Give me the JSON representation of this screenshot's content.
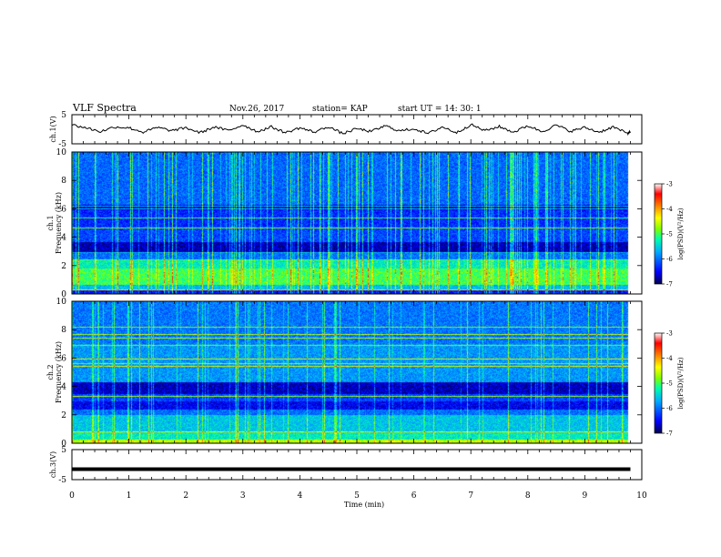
{
  "header": {
    "title": "VLF Spectra",
    "date": "Nov.26, 2017",
    "station": "station= KAP",
    "start": "start  UT =   14: 30: 1"
  },
  "colors": {
    "colormap": [
      "#00004a",
      "#0000ff",
      "#00aaff",
      "#00ffaa",
      "#80ff00",
      "#ffff00",
      "#ff8000",
      "#ff0000",
      "#ffffff"
    ],
    "trace": "#000000"
  },
  "chart_data": [
    {
      "type": "line",
      "panel": "ch1-waveform",
      "ylabel": "ch.1(V)",
      "ylim": [
        -5,
        5
      ],
      "y_ticks": [
        "5",
        "-5"
      ],
      "xlim": [
        0,
        10
      ],
      "series": [
        {
          "x": [
            0,
            0.25,
            0.5,
            0.75,
            1.0,
            1.25,
            1.5,
            1.75,
            2.0,
            2.25,
            2.5,
            2.75,
            3.0,
            3.25,
            3.5,
            3.75,
            4.0,
            4.25,
            4.5,
            4.75,
            5.0,
            5.25,
            5.5,
            5.75,
            6.0,
            6.25,
            6.5,
            6.75,
            7.0,
            7.25,
            7.5,
            7.75,
            8.0,
            8.25,
            8.5,
            8.75,
            9.0,
            9.25,
            9.5,
            9.75,
            9.8
          ],
          "y": [
            1.5,
            0.5,
            -0.8,
            0.8,
            0.5,
            -1.0,
            0.6,
            -0.5,
            0.5,
            -1.2,
            0.8,
            -0.5,
            1.5,
            -0.8,
            0.8,
            -1.2,
            0.5,
            -1.0,
            0.9,
            -1.5,
            0.2,
            -0.8,
            1.2,
            -0.6,
            0.2,
            -1.5,
            0.8,
            -1.2,
            1.6,
            -0.5,
            0.9,
            -1.0,
            1.2,
            -0.8,
            1.4,
            -0.7,
            0.6,
            -1.0,
            0.8,
            -1.5,
            -0.8
          ]
        }
      ]
    },
    {
      "type": "heatmap",
      "panel": "ch1-spectrogram",
      "ylabel": "ch.1 Frequency (kHz)",
      "xlim": [
        0,
        10
      ],
      "ylim": [
        0,
        10
      ],
      "y_ticks": [
        "0",
        "2",
        "4",
        "6",
        "8",
        "10"
      ],
      "colorbar": {
        "label": "log(PSD)(V²/Hz)",
        "range": [
          -7,
          -3
        ],
        "ticks": [
          "-3",
          "-4",
          "-5",
          "-6",
          "-7"
        ]
      }
    },
    {
      "type": "heatmap",
      "panel": "ch2-spectrogram",
      "ylabel": "ch.2 Frequency (kHz)",
      "xlim": [
        0,
        10
      ],
      "ylim": [
        0,
        10
      ],
      "y_ticks": [
        "0",
        "2",
        "4",
        "6",
        "8",
        "10"
      ],
      "colorbar": {
        "label": "log(PSD)(V²/Hz)",
        "range": [
          -7,
          -3
        ],
        "ticks": [
          "-3",
          "-4",
          "-5",
          "-6",
          "-7"
        ]
      }
    },
    {
      "type": "line",
      "panel": "ch3-waveform",
      "ylabel": "ch.3(V)",
      "ylim": [
        -5,
        5
      ],
      "y_ticks": [
        "5",
        "-5"
      ],
      "xlim": [
        0,
        10
      ],
      "series": [
        {
          "x": [
            0,
            9.8
          ],
          "y": [
            -1.5,
            -1.5
          ]
        }
      ]
    }
  ],
  "x_axis": {
    "label": "Time  (min)",
    "ticks": [
      "0",
      "1",
      "2",
      "3",
      "4",
      "5",
      "6",
      "7",
      "8",
      "9",
      "10"
    ]
  }
}
